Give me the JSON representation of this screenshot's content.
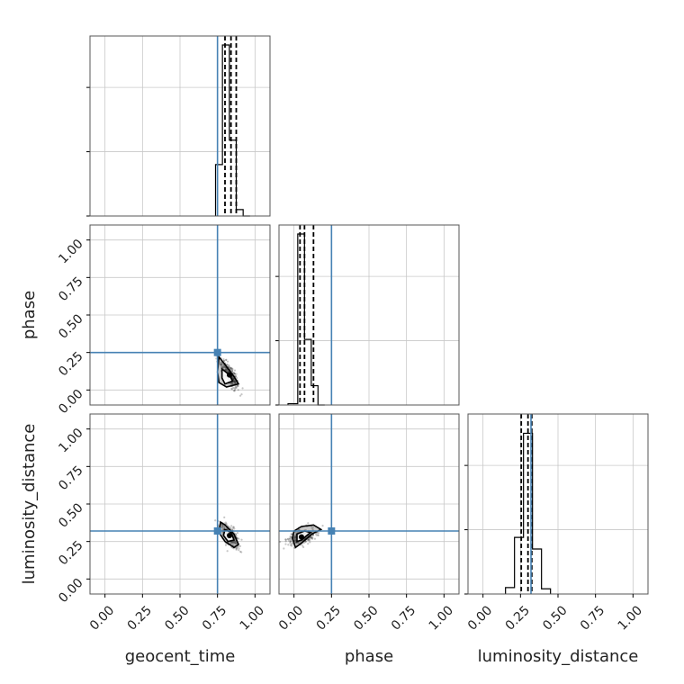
{
  "chart_data": {
    "type": "corner",
    "parameters": [
      "geocent_time",
      "phase",
      "luminosity_distance"
    ],
    "axis_labels": {
      "x": [
        "geocent_time",
        "phase",
        "luminosity_distance"
      ],
      "y": [
        "",
        "phase",
        "luminosity_distance"
      ]
    },
    "ticks": [
      0.0,
      0.25,
      0.5,
      0.75,
      1.0
    ],
    "tick_labels": [
      "0.00",
      "0.25",
      "0.50",
      "0.75",
      "1.00"
    ],
    "axis_range": [
      -0.1,
      1.1
    ],
    "grid": true,
    "truths": {
      "geocent_time": 0.75,
      "phase": 0.25,
      "luminosity_distance": 0.32
    },
    "truth_color": "#4682b4",
    "quantile_color": "#000000",
    "histograms": [
      {
        "parameter": "geocent_time",
        "bin_edges": [
          0.737,
          0.783,
          0.829,
          0.875,
          0.921,
          0.967
        ],
        "counts": [
          0.4,
          1.33,
          0.59,
          0.05,
          0.0
        ],
        "ylim": [
          0,
          1.4
        ],
        "quantiles": [
          0.8,
          0.84,
          0.875
        ]
      },
      {
        "parameter": "phase",
        "bin_edges": [
          -0.04,
          0.025,
          0.07,
          0.115,
          0.16,
          0.205
        ],
        "counts": [
          0.01,
          1.33,
          0.51,
          0.15,
          0.0
        ],
        "ylim": [
          0,
          1.4
        ],
        "quantiles": [
          0.04,
          0.07,
          0.13
        ]
      },
      {
        "parameter": "luminosity_distance",
        "bin_edges": [
          0.15,
          0.21,
          0.27,
          0.33,
          0.39,
          0.45
        ],
        "counts": [
          0.05,
          0.44,
          1.25,
          0.35,
          0.04
        ],
        "ylim": [
          0,
          1.4
        ],
        "quantiles": [
          0.255,
          0.3,
          0.325
        ]
      }
    ],
    "scatter_panels": [
      {
        "x": "geocent_time",
        "y": "phase",
        "center": [
          0.83,
          0.1
        ],
        "outer_contour": [
          [
            0.76,
            0.22
          ],
          [
            0.8,
            0.17
          ],
          [
            0.86,
            0.09
          ],
          [
            0.89,
            0.04
          ],
          [
            0.81,
            0.02
          ],
          [
            0.76,
            0.05
          ],
          [
            0.75,
            0.12
          ]
        ],
        "inner_contour": [
          [
            0.78,
            0.14
          ],
          [
            0.83,
            0.1
          ],
          [
            0.85,
            0.06
          ],
          [
            0.8,
            0.04
          ],
          [
            0.78,
            0.08
          ]
        ],
        "truth_marker": [
          0.75,
          0.25
        ]
      },
      {
        "x": "geocent_time",
        "y": "luminosity_distance",
        "center": [
          0.83,
          0.29
        ],
        "outer_contour": [
          [
            0.77,
            0.38
          ],
          [
            0.8,
            0.36
          ],
          [
            0.86,
            0.3
          ],
          [
            0.89,
            0.23
          ],
          [
            0.86,
            0.21
          ],
          [
            0.8,
            0.25
          ],
          [
            0.76,
            0.31
          ]
        ],
        "inner_contour": [
          [
            0.8,
            0.33
          ],
          [
            0.84,
            0.31
          ],
          [
            0.86,
            0.26
          ],
          [
            0.82,
            0.25
          ],
          [
            0.79,
            0.29
          ]
        ],
        "truth_marker": [
          0.75,
          0.32
        ]
      },
      {
        "x": "phase",
        "y": "luminosity_distance",
        "center": [
          0.05,
          0.28
        ],
        "outer_contour": [
          [
            0.0,
            0.32
          ],
          [
            0.05,
            0.35
          ],
          [
            0.13,
            0.36
          ],
          [
            0.18,
            0.33
          ],
          [
            0.12,
            0.3
          ],
          [
            0.05,
            0.24
          ],
          [
            0.01,
            0.21
          ],
          [
            -0.01,
            0.27
          ]
        ],
        "inner_contour": [
          [
            0.02,
            0.3
          ],
          [
            0.07,
            0.32
          ],
          [
            0.11,
            0.31
          ],
          [
            0.05,
            0.26
          ],
          [
            0.02,
            0.25
          ]
        ],
        "truth_marker": [
          0.25,
          0.32
        ]
      }
    ]
  }
}
